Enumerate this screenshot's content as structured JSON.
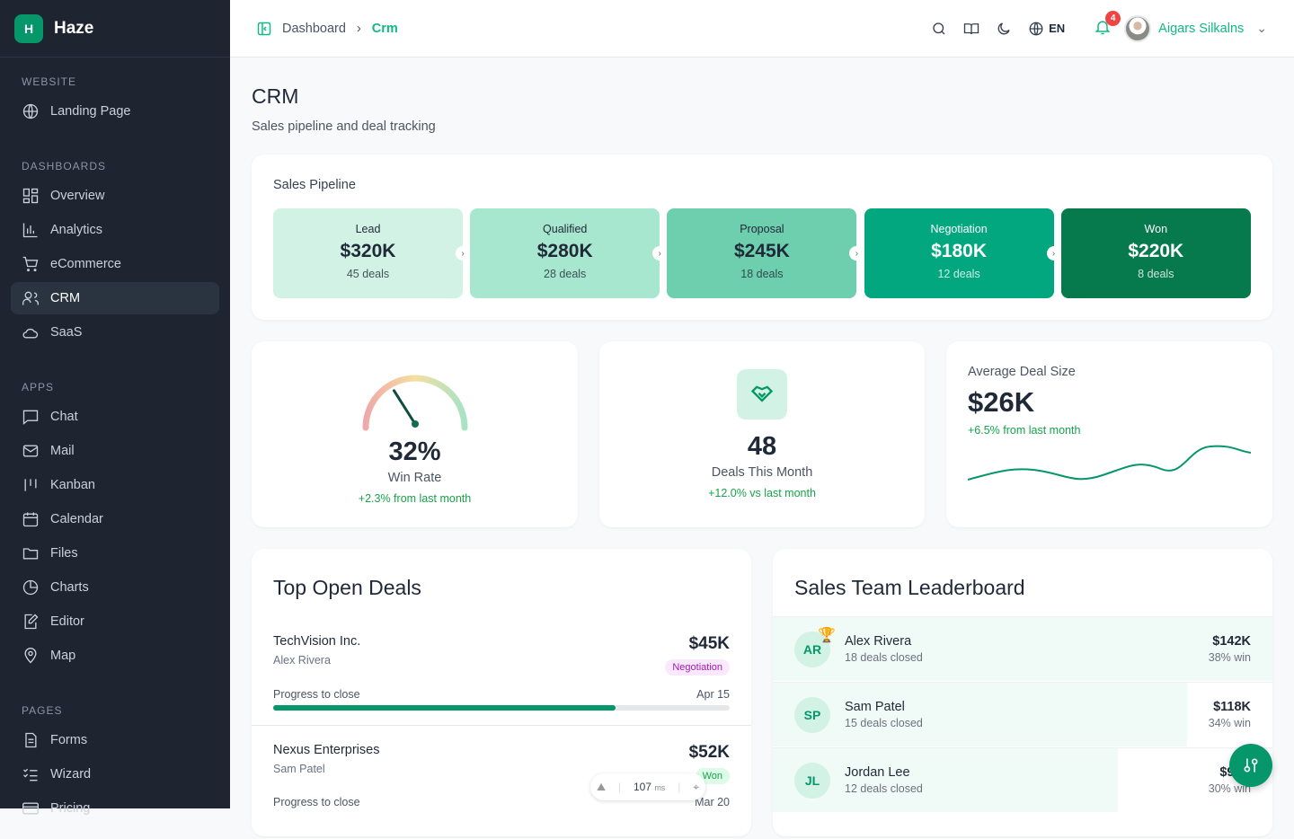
{
  "brand": {
    "initial": "H",
    "name": "Haze"
  },
  "sidebar": {
    "sections": [
      {
        "title": "WEBSITE",
        "items": [
          {
            "label": "Landing Page",
            "icon": "globe-icon"
          }
        ]
      },
      {
        "title": "DASHBOARDS",
        "items": [
          {
            "label": "Overview",
            "icon": "grid-icon"
          },
          {
            "label": "Analytics",
            "icon": "bar-chart-icon"
          },
          {
            "label": "eCommerce",
            "icon": "cart-icon"
          },
          {
            "label": "CRM",
            "icon": "users-icon",
            "active": true
          },
          {
            "label": "SaaS",
            "icon": "cloud-icon"
          }
        ]
      },
      {
        "title": "APPS",
        "items": [
          {
            "label": "Chat",
            "icon": "chat-icon"
          },
          {
            "label": "Mail",
            "icon": "mail-icon"
          },
          {
            "label": "Kanban",
            "icon": "kanban-icon"
          },
          {
            "label": "Calendar",
            "icon": "calendar-icon"
          },
          {
            "label": "Files",
            "icon": "folder-icon"
          },
          {
            "label": "Charts",
            "icon": "pie-icon"
          },
          {
            "label": "Editor",
            "icon": "edit-icon"
          },
          {
            "label": "Map",
            "icon": "map-pin-icon"
          }
        ]
      },
      {
        "title": "PAGES",
        "items": [
          {
            "label": "Forms",
            "icon": "form-icon"
          },
          {
            "label": "Wizard",
            "icon": "list-check-icon"
          },
          {
            "label": "Pricing",
            "icon": "card-icon"
          }
        ]
      }
    ]
  },
  "header": {
    "breadcrumb": [
      "Dashboard",
      "Crm"
    ],
    "lang": "EN",
    "notifications": "4",
    "user": "Aigars Silkalns"
  },
  "page": {
    "title": "CRM",
    "subtitle": "Sales pipeline and deal tracking"
  },
  "pipeline": {
    "title": "Sales Pipeline",
    "stages": [
      {
        "name": "Lead",
        "value": "$320K",
        "deals": "45 deals",
        "color": "#d1f2e4",
        "text": "#1f2937"
      },
      {
        "name": "Qualified",
        "value": "$280K",
        "deals": "28 deals",
        "color": "#a7e6cf",
        "text": "#1f2937"
      },
      {
        "name": "Proposal",
        "value": "$245K",
        "deals": "18 deals",
        "color": "#6dcfad",
        "text": "#1f2937"
      },
      {
        "name": "Negotiation",
        "value": "$180K",
        "deals": "12 deals",
        "color": "#03a77f",
        "text": "#ffffff"
      },
      {
        "name": "Won",
        "value": "$220K",
        "deals": "8 deals",
        "color": "#067a4d",
        "text": "#ffffff"
      }
    ]
  },
  "winrate": {
    "value": "32%",
    "label": "Win Rate",
    "change": "+2.3% from last month",
    "percent": 32
  },
  "deals": {
    "value": "48",
    "label": "Deals This Month",
    "change": "+12.0% vs last month"
  },
  "avgdeal": {
    "label": "Average Deal Size",
    "value": "$26K",
    "change": "+6.5% from last month"
  },
  "top_deals": {
    "title": "Top Open Deals",
    "progress_label": "Progress to close",
    "items": [
      {
        "company": "TechVision Inc.",
        "owner": "Alex Rivera",
        "amount": "$45K",
        "stage": "Negotiation",
        "date": "Apr 15",
        "progress": 75
      },
      {
        "company": "Nexus Enterprises",
        "owner": "Sam Patel",
        "amount": "$52K",
        "stage": "Won",
        "date": "Mar 20"
      }
    ]
  },
  "leaderboard": {
    "title": "Sales Team Leaderboard",
    "items": [
      {
        "initials": "AR",
        "name": "Alex Rivera",
        "deals": "18 deals closed",
        "amount": "$142K",
        "win": "38% win",
        "share": 100
      },
      {
        "initials": "SP",
        "name": "Sam Patel",
        "deals": "15 deals closed",
        "amount": "$118K",
        "win": "34% win",
        "share": 83
      },
      {
        "initials": "JL",
        "name": "Jordan Lee",
        "deals": "12 deals closed",
        "amount": "$96K",
        "win": "30% win",
        "share": 69
      }
    ]
  },
  "devtools": {
    "ms": "107",
    "unit": "ms"
  }
}
